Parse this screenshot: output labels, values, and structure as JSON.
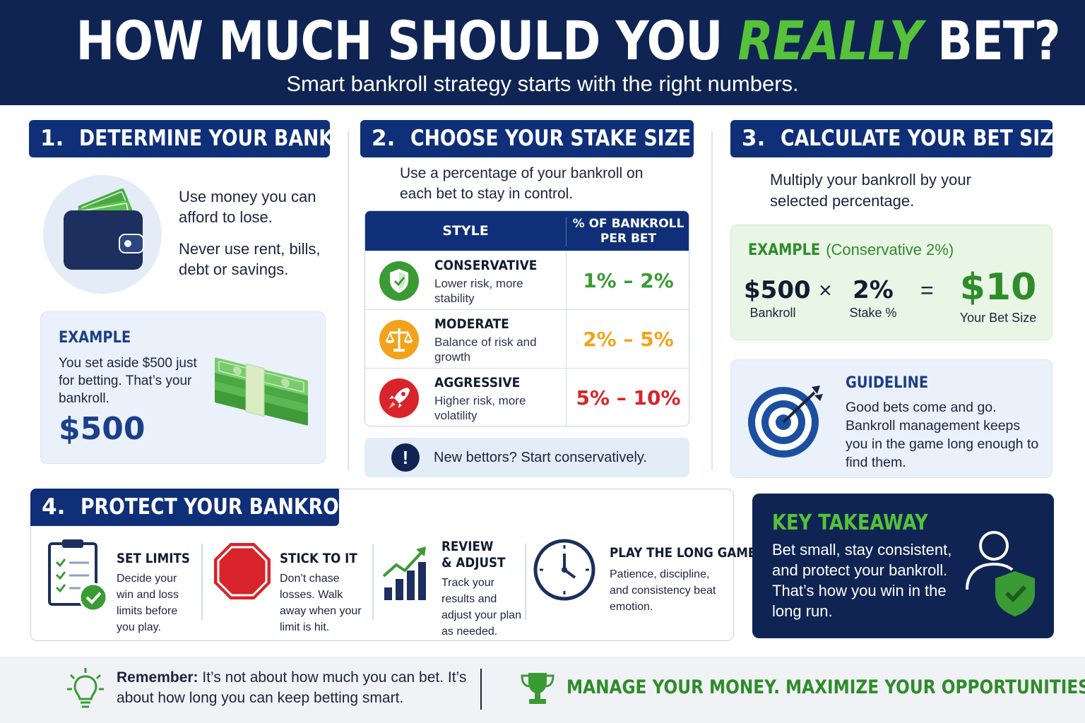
{
  "header": {
    "title_part1": "HOW MUCH SHOULD YOU ",
    "title_highlight": "REALLY",
    "title_part2": " BET?",
    "subtitle": "Smart bankroll strategy starts with the right numbers."
  },
  "section1": {
    "number": "1.",
    "title": "DETERMINE YOUR BANKROLL",
    "line1": "Use money you can afford to lose.",
    "line2": "Never use rent, bills, debt or savings.",
    "example_label": "EXAMPLE",
    "example_text": "You set aside $500 just for betting. That’s your bankroll.",
    "example_amount": "$500"
  },
  "section2": {
    "number": "2.",
    "title": "CHOOSE YOUR STAKE SIZE",
    "intro": "Use a percentage of your bankroll on each bet to stay in control.",
    "table": {
      "col_style": "STYLE",
      "col_pct_line1": "% OF BANKROLL",
      "col_pct_line2": "PER BET",
      "rows": [
        {
          "name": "CONSERVATIVE",
          "desc": "Lower risk, more stability",
          "pct": "1% – 2%",
          "color": "#3a9b35",
          "icon": "shield-icon"
        },
        {
          "name": "MODERATE",
          "desc": "Balance of risk and growth",
          "pct": "2% – 5%",
          "color": "#f2a31b",
          "icon": "scales-icon"
        },
        {
          "name": "AGGRESSIVE",
          "desc": "Higher risk, more volatility",
          "pct": "5% – 10%",
          "color": "#d8242a",
          "icon": "rocket-icon"
        }
      ]
    },
    "tip_icon": "!",
    "tip": "New bettors? Start conservatively."
  },
  "section3": {
    "number": "3.",
    "title": "CALCULATE YOUR BET SIZE",
    "intro": "Multiply your bankroll by your selected percentage.",
    "example_label": "EXAMPLE",
    "example_sub": "(Conservative 2%)",
    "bankroll_value": "$500",
    "bankroll_caption": "Bankroll",
    "times": "×",
    "stake_value": "2%",
    "stake_caption": "Stake %",
    "equals": "=",
    "result_value": "$10",
    "result_caption": "Your Bet Size",
    "guideline_label": "GUIDELINE",
    "guideline_text": "Good bets come and go. Bankroll management keeps you in the game long enough to find them."
  },
  "section4": {
    "number": "4.",
    "title": "PROTECT YOUR BANKROLL",
    "items": [
      {
        "title": "SET LIMITS",
        "desc": "Decide your win and loss limits before you play."
      },
      {
        "title": "STICK TO IT",
        "desc": "Don’t chase losses. Walk away when your limit is hit."
      },
      {
        "title": "REVIEW & ADJUST",
        "desc": "Track your results and adjust your plan as needed."
      },
      {
        "title": "PLAY THE LONG GAME",
        "desc": "Patience, discipline, and consistency beat emotion."
      }
    ]
  },
  "takeaway": {
    "label": "KEY TAKEAWAY",
    "text": "Bet small, stay consistent, and protect your bankroll. That’s how you win in the long run."
  },
  "footer": {
    "remember_bold": "Remember:",
    "remember_text": " It’s not  about how much you can bet. It’s about how long you can keep betting smart.",
    "motto": "MANAGE YOUR MONEY. MAXIMIZE YOUR OPPORTUNITIES."
  },
  "colors": {
    "navy": "#0f2453",
    "title_blue": "#0f2f78",
    "green": "#55c23a",
    "dark_green": "#2e8c2a",
    "orange": "#f2a31b",
    "red": "#d8242a"
  }
}
